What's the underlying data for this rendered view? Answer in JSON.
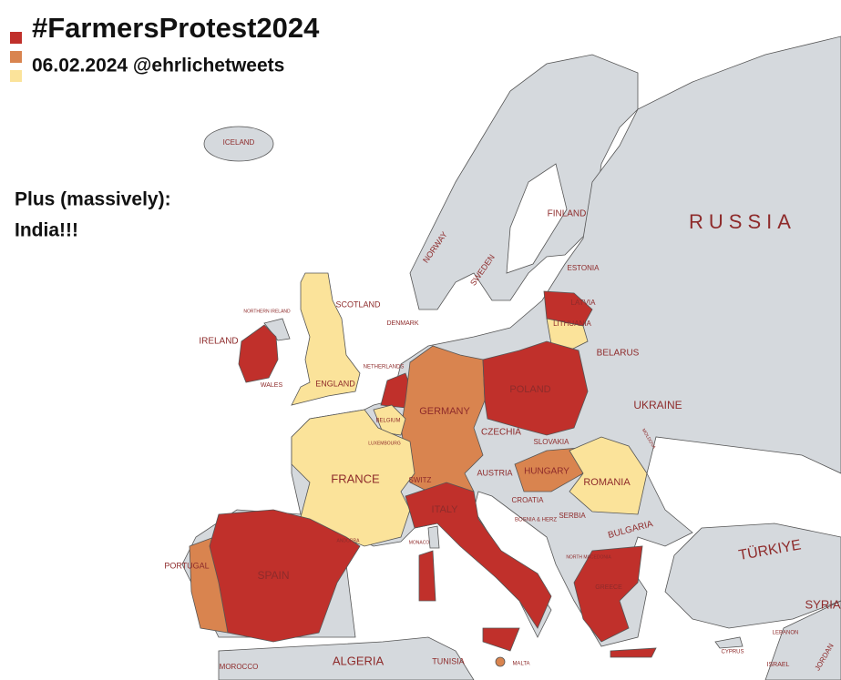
{
  "header": {
    "title": "#FarmersProtest2024",
    "subtitle": "06.02.2024 @ehrlichetweets"
  },
  "note": {
    "lines": [
      "Plus (massively):",
      "India!!!"
    ]
  },
  "legend": {
    "colors": [
      "#c0302b",
      "#d9844f",
      "#fbe39a"
    ]
  },
  "countries": [
    {
      "label": "ICELAND"
    },
    {
      "label": "FINLAND"
    },
    {
      "label": "RUSSIA"
    },
    {
      "label": "NORWAY"
    },
    {
      "label": "SWEDEN"
    },
    {
      "label": "ESTONIA"
    },
    {
      "label": "LATVIA",
      "color": "#c0302b"
    },
    {
      "label": "LITHUANIA",
      "color": "#fbe39a"
    },
    {
      "label": "BELARUS"
    },
    {
      "label": "SCOTLAND"
    },
    {
      "label": "NORTHERN IRELAND"
    },
    {
      "label": "IRELAND",
      "color": "#c0302b"
    },
    {
      "label": "DENMARK"
    },
    {
      "label": "NETHERLANDS",
      "color": "#c0302b"
    },
    {
      "label": "WALES"
    },
    {
      "label": "ENGLAND",
      "color": "#fbe39a"
    },
    {
      "label": "GERMANY",
      "color": "#d9844f"
    },
    {
      "label": "POLAND",
      "color": "#c0302b"
    },
    {
      "label": "UKRAINE"
    },
    {
      "label": "CZECHIA"
    },
    {
      "label": "SLOVAKIA"
    },
    {
      "label": "BELGIUM",
      "color": "#fbe39a"
    },
    {
      "label": "LUXEMBOURG"
    },
    {
      "label": "FRANCE",
      "color": "#fbe39a"
    },
    {
      "label": "SWITZ"
    },
    {
      "label": "AUSTRIA"
    },
    {
      "label": "HUNGARY",
      "color": "#d9844f"
    },
    {
      "label": "ROMANIA",
      "color": "#fbe39a"
    },
    {
      "label": "MOLDOVA"
    },
    {
      "label": "CROATIA"
    },
    {
      "label": "BOSNIA & HERZ"
    },
    {
      "label": "SERBIA"
    },
    {
      "label": "ITALY",
      "color": "#c0302b"
    },
    {
      "label": "BULGARIA"
    },
    {
      "label": "TÜRKIYE"
    },
    {
      "label": "PORTUGAL",
      "color": "#d9844f"
    },
    {
      "label": "SPAIN",
      "color": "#c0302b"
    },
    {
      "label": "ANDORRA"
    },
    {
      "label": "MONACO"
    },
    {
      "label": "GREECE",
      "color": "#c0302b"
    },
    {
      "label": "NORTH MACEDONIA"
    },
    {
      "label": "SYRIA"
    },
    {
      "label": "LEBANON"
    },
    {
      "label": "CYPRUS"
    },
    {
      "label": "ISRAEL"
    },
    {
      "label": "JORDAN"
    },
    {
      "label": "ALGERIA"
    },
    {
      "label": "MOROCCO"
    },
    {
      "label": "TUNISIA"
    },
    {
      "label": "MALTA",
      "color": "#d9844f"
    }
  ]
}
